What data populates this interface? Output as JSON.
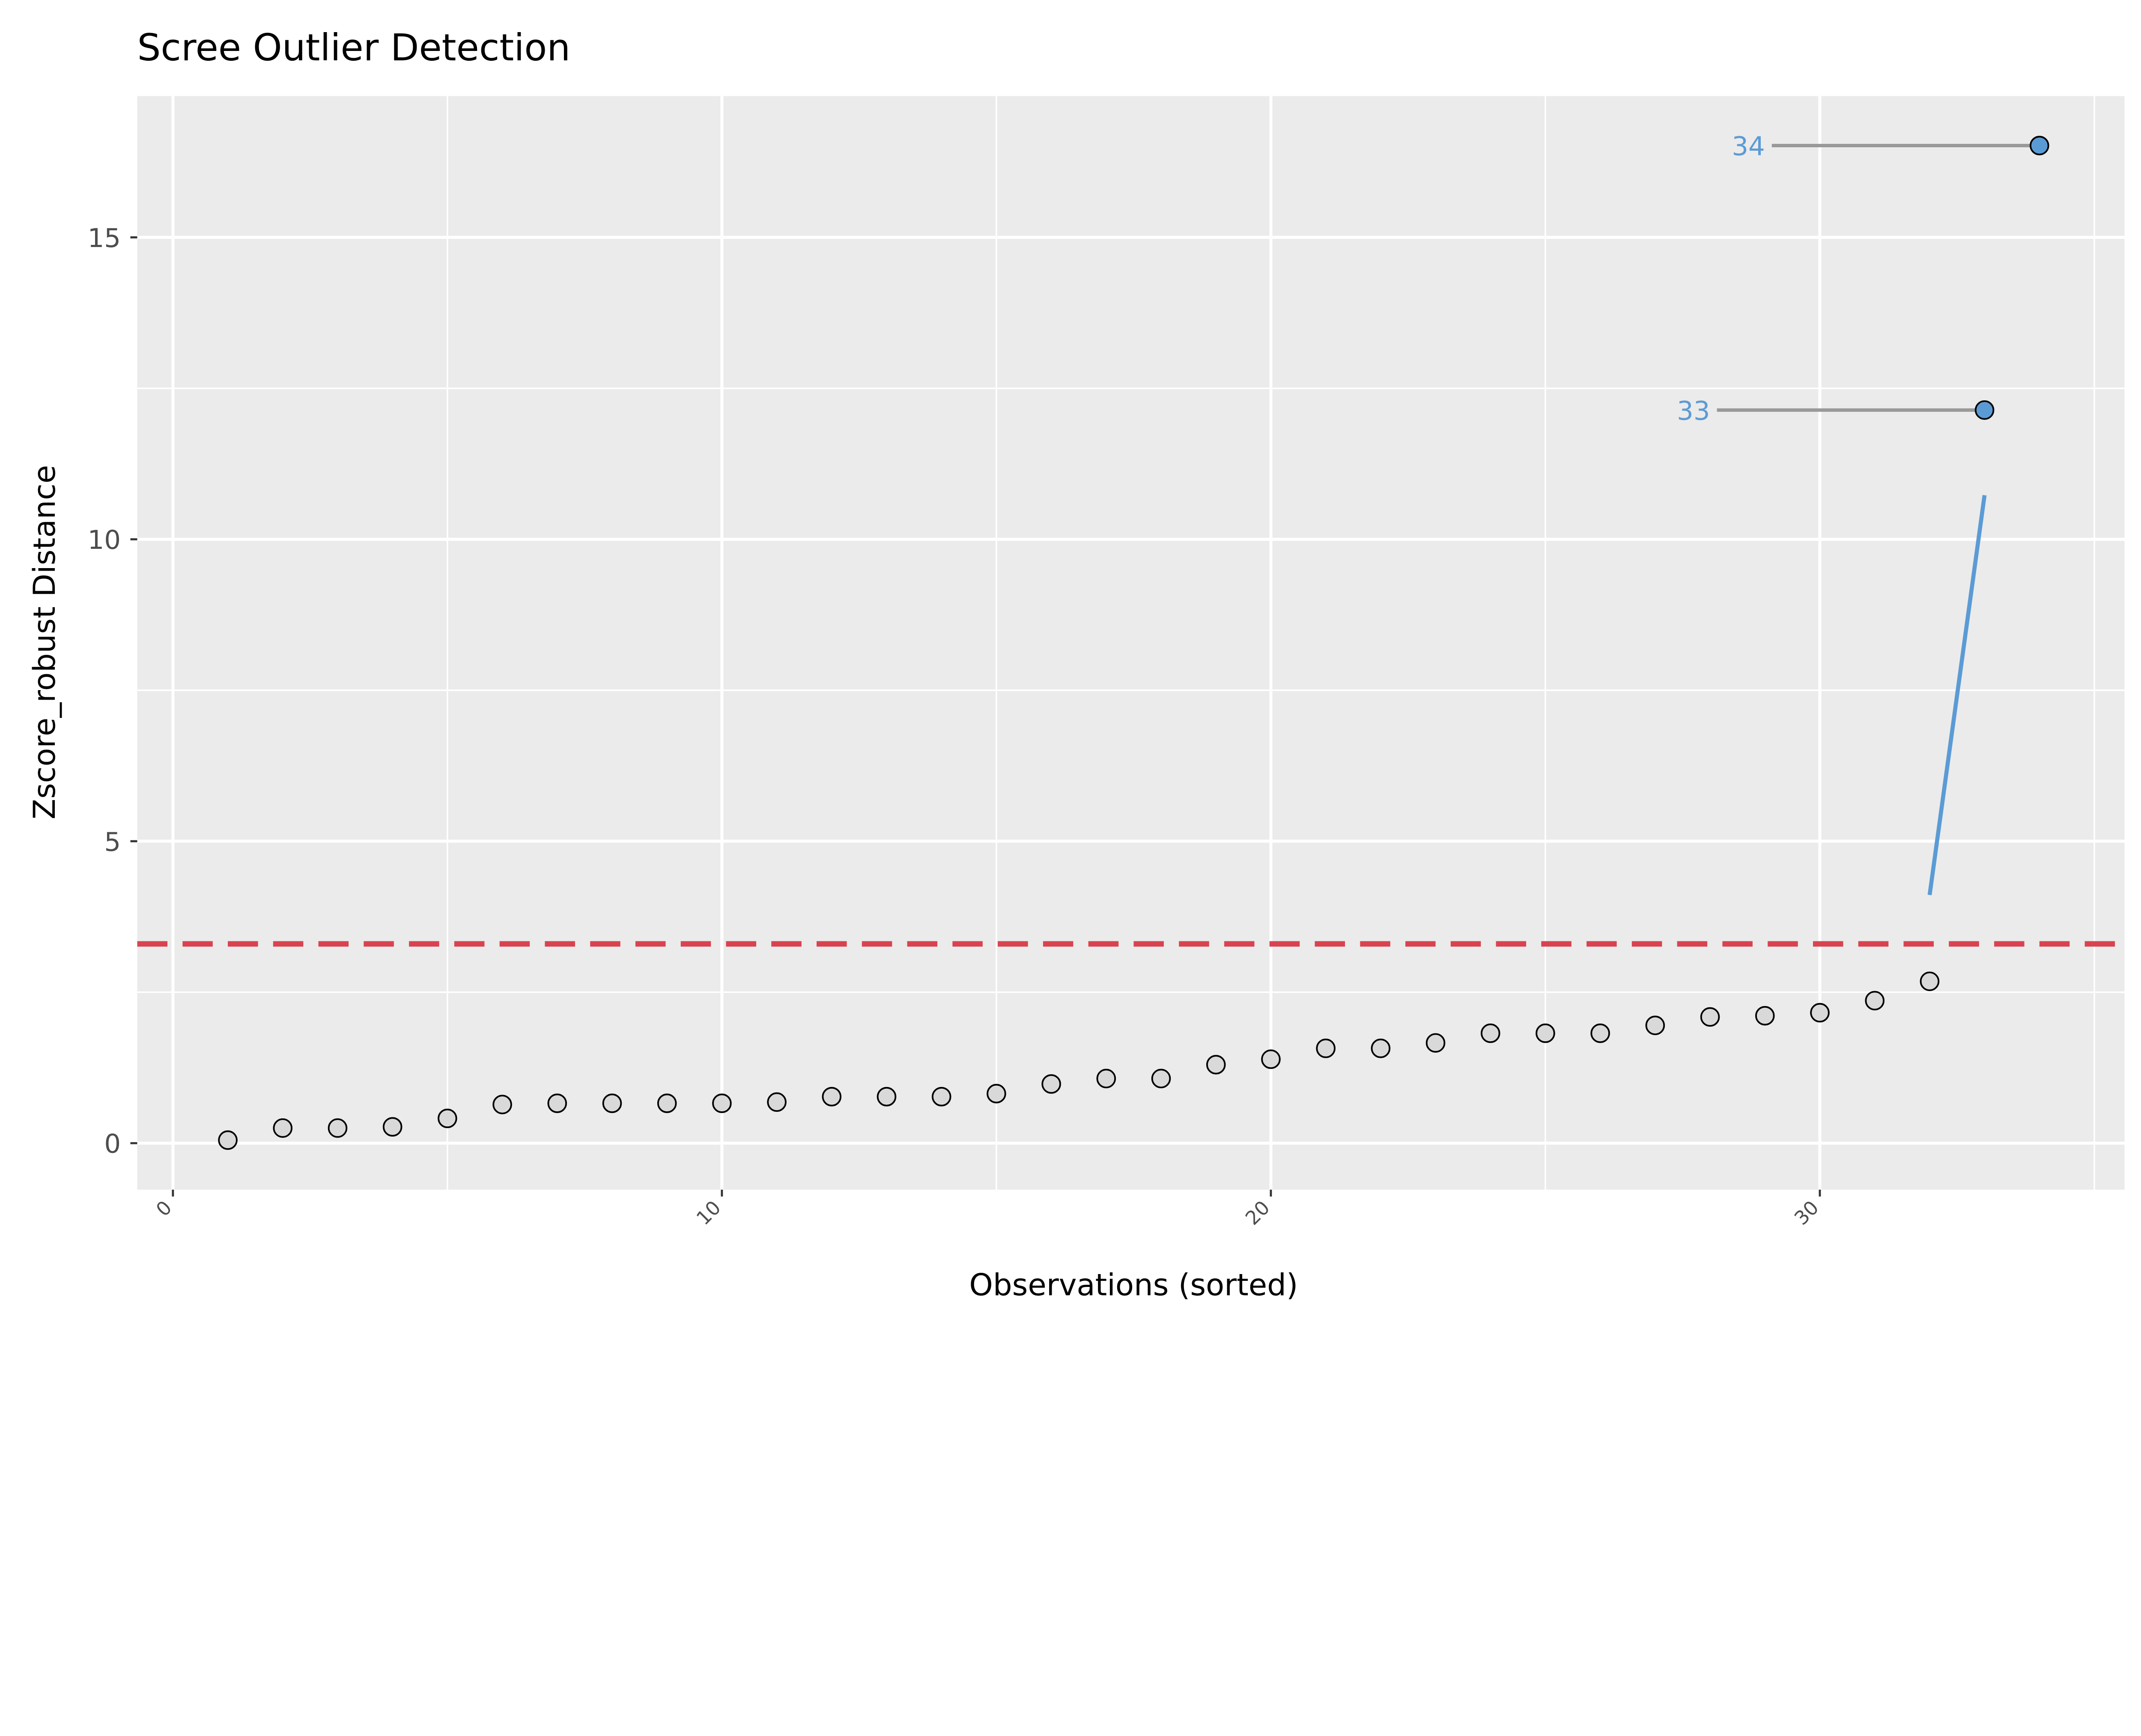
{
  "chart_data": {
    "type": "scatter",
    "title": "Scree Outlier Detection",
    "xlabel": "Observations (sorted)",
    "ylabel": "Zscore_robust Distance",
    "xlim": [
      -0.65,
      35.55
    ],
    "ylim": [
      -0.77,
      17.34
    ],
    "x_ticks": [
      0,
      10,
      20,
      30
    ],
    "x_tick_labels": [
      "0",
      "10",
      "20",
      "30"
    ],
    "y_ticks": [
      0,
      5,
      10,
      15
    ],
    "y_tick_labels": [
      "0",
      "5",
      "10",
      "15"
    ],
    "grid": true,
    "x": [
      1,
      2,
      3,
      4,
      5,
      6,
      7,
      8,
      9,
      10,
      11,
      12,
      13,
      14,
      15,
      16,
      17,
      18,
      19,
      20,
      21,
      22,
      23,
      24,
      25,
      26,
      27,
      28,
      29,
      30,
      31,
      32,
      33,
      34
    ],
    "y": [
      0.05,
      0.25,
      0.25,
      0.27,
      0.41,
      0.64,
      0.66,
      0.66,
      0.66,
      0.66,
      0.68,
      0.77,
      0.77,
      0.77,
      0.82,
      0.98,
      1.07,
      1.07,
      1.3,
      1.39,
      1.57,
      1.57,
      1.66,
      1.82,
      1.82,
      1.82,
      1.95,
      2.09,
      2.11,
      2.16,
      2.36,
      2.68,
      12.14,
      16.52
    ],
    "outliers": [
      {
        "x": 33,
        "y": 12.14,
        "label": "33",
        "label_x": 28.0
      },
      {
        "x": 34,
        "y": 16.52,
        "label": "34",
        "label_x": 29.0
      }
    ],
    "threshold": 3.3,
    "elbow_segment": {
      "x": [
        32,
        33
      ],
      "y": [
        4.11,
        10.73
      ]
    },
    "colors": {
      "panel": "#ebebeb",
      "grid": "#ffffff",
      "point_fill": "#d9d9d9",
      "outlier_fill": "#5b9bd5",
      "threshold": "#d9434f",
      "elbow_line": "#5b9bd5",
      "label_line": "#999999",
      "label_text": "#5b9bd5"
    }
  }
}
